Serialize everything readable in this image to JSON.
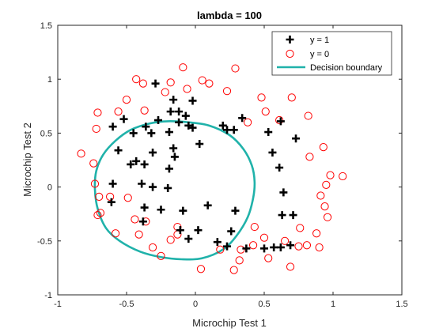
{
  "chart_data": {
    "type": "scatter",
    "title": "lambda = 100",
    "xlabel": "Microchip Test 1",
    "ylabel": "Microchip Test 2",
    "xlim": [
      -1,
      1.5
    ],
    "ylim": [
      -1,
      1.5
    ],
    "xticks": [
      -1,
      -0.5,
      0,
      0.5,
      1,
      1.5
    ],
    "yticks": [
      -1,
      -0.5,
      0,
      0.5,
      1,
      1.5
    ],
    "xtick_labels": [
      "-1",
      "-0.5",
      "0",
      "0.5",
      "1",
      "1.5"
    ],
    "ytick_labels": [
      "-1",
      "-0.5",
      "0",
      "0.5",
      "1",
      "1.5"
    ],
    "grid": false,
    "legend_position": "top-right",
    "series": [
      {
        "name": "y = 1",
        "marker": "plus",
        "color": "#000000",
        "points": [
          [
            -0.29,
            0.96
          ],
          [
            -0.16,
            0.81
          ],
          [
            -0.02,
            0.8
          ],
          [
            -0.18,
            0.7
          ],
          [
            -0.12,
            0.7
          ],
          [
            -0.27,
            0.62
          ],
          [
            -0.07,
            0.66
          ],
          [
            -0.12,
            0.6
          ],
          [
            -0.52,
            0.63
          ],
          [
            -0.36,
            0.56
          ],
          [
            -0.02,
            0.55
          ],
          [
            -0.05,
            0.57
          ],
          [
            -0.6,
            0.56
          ],
          [
            -0.45,
            0.5
          ],
          [
            -0.32,
            0.5
          ],
          [
            -0.19,
            0.51
          ],
          [
            0.2,
            0.57
          ],
          [
            0.23,
            0.53
          ],
          [
            0.28,
            0.53
          ],
          [
            0.34,
            0.64
          ],
          [
            0.53,
            0.51
          ],
          [
            0.62,
            0.61
          ],
          [
            0.73,
            0.45
          ],
          [
            0.03,
            0.4
          ],
          [
            -0.16,
            0.36
          ],
          [
            -0.56,
            0.34
          ],
          [
            -0.43,
            0.24
          ],
          [
            -0.31,
            0.32
          ],
          [
            -0.15,
            0.28
          ],
          [
            0.56,
            0.32
          ],
          [
            0.61,
            0.18
          ],
          [
            -0.47,
            0.21
          ],
          [
            -0.37,
            0.21
          ],
          [
            -0.19,
            0.17
          ],
          [
            -0.6,
            0.03
          ],
          [
            -0.39,
            0.03
          ],
          [
            -0.31,
            0.0
          ],
          [
            -0.2,
            -0.01
          ],
          [
            0.64,
            -0.05
          ],
          [
            -0.61,
            -0.14
          ],
          [
            -0.37,
            -0.19
          ],
          [
            -0.25,
            -0.21
          ],
          [
            -0.38,
            -0.32
          ],
          [
            -0.09,
            -0.22
          ],
          [
            0.09,
            -0.17
          ],
          [
            0.29,
            -0.22
          ],
          [
            0.63,
            -0.26
          ],
          [
            0.71,
            -0.26
          ],
          [
            0.02,
            -0.4
          ],
          [
            -0.05,
            -0.48
          ],
          [
            -0.11,
            -0.4
          ],
          [
            0.26,
            -0.41
          ],
          [
            0.16,
            -0.51
          ],
          [
            0.23,
            -0.55
          ],
          [
            0.57,
            -0.56
          ],
          [
            0.62,
            -0.56
          ],
          [
            0.69,
            -0.54
          ],
          [
            0.37,
            -0.57
          ],
          [
            0.5,
            -0.57
          ]
        ]
      },
      {
        "name": "y = 0",
        "marker": "circle",
        "color": "#ff0000",
        "points": [
          [
            -0.09,
            1.11
          ],
          [
            0.29,
            1.1
          ],
          [
            -0.43,
            1.0
          ],
          [
            -0.38,
            0.96
          ],
          [
            0.05,
            0.99
          ],
          [
            -0.18,
            0.97
          ],
          [
            -0.22,
            0.88
          ],
          [
            0.1,
            0.96
          ],
          [
            -0.06,
            0.91
          ],
          [
            0.23,
            0.89
          ],
          [
            0.48,
            0.83
          ],
          [
            0.7,
            0.83
          ],
          [
            0.51,
            0.7
          ],
          [
            0.82,
            0.66
          ],
          [
            -0.5,
            0.81
          ],
          [
            -0.56,
            0.7
          ],
          [
            -0.37,
            0.71
          ],
          [
            -0.71,
            0.69
          ],
          [
            0.61,
            0.62
          ],
          [
            0.38,
            0.6
          ],
          [
            -0.72,
            0.54
          ],
          [
            0.93,
            0.37
          ],
          [
            0.83,
            0.28
          ],
          [
            -0.83,
            0.31
          ],
          [
            -0.74,
            0.22
          ],
          [
            -0.73,
            0.03
          ],
          [
            0.98,
            0.11
          ],
          [
            1.07,
            0.1
          ],
          [
            0.95,
            0.02
          ],
          [
            -0.7,
            -0.09
          ],
          [
            0.91,
            -0.08
          ],
          [
            -0.49,
            -0.1
          ],
          [
            -0.62,
            -0.09
          ],
          [
            0.94,
            -0.18
          ],
          [
            -0.69,
            -0.24
          ],
          [
            -0.71,
            -0.26
          ],
          [
            -0.44,
            -0.3
          ],
          [
            -0.36,
            -0.32
          ],
          [
            0.96,
            -0.28
          ],
          [
            0.43,
            -0.37
          ],
          [
            -0.13,
            -0.37
          ],
          [
            0.76,
            -0.38
          ],
          [
            -0.13,
            -0.44
          ],
          [
            -0.18,
            -0.49
          ],
          [
            -0.31,
            -0.56
          ],
          [
            -0.41,
            -0.44
          ],
          [
            -0.58,
            -0.43
          ],
          [
            0.88,
            -0.43
          ],
          [
            0.81,
            -0.54
          ],
          [
            0.5,
            -0.47
          ],
          [
            0.65,
            -0.5
          ],
          [
            0.42,
            -0.54
          ],
          [
            0.75,
            -0.55
          ],
          [
            0.33,
            -0.58
          ],
          [
            0.18,
            -0.58
          ],
          [
            0.9,
            -0.56
          ],
          [
            -0.25,
            -0.64
          ],
          [
            0.32,
            -0.68
          ],
          [
            0.53,
            -0.66
          ],
          [
            0.69,
            -0.74
          ],
          [
            0.04,
            -0.76
          ],
          [
            0.28,
            -0.77
          ]
        ]
      },
      {
        "name": "Decision boundary",
        "type": "closed-curve",
        "color": "#20b2aa",
        "points": [
          [
            -0.2,
            0.61
          ],
          [
            -0.05,
            0.6
          ],
          [
            0.1,
            0.57
          ],
          [
            0.25,
            0.48
          ],
          [
            0.35,
            0.35
          ],
          [
            0.41,
            0.2
          ],
          [
            0.43,
            0.05
          ],
          [
            0.42,
            -0.1
          ],
          [
            0.38,
            -0.28
          ],
          [
            0.3,
            -0.45
          ],
          [
            0.2,
            -0.58
          ],
          [
            0.05,
            -0.66
          ],
          [
            -0.1,
            -0.67
          ],
          [
            -0.25,
            -0.65
          ],
          [
            -0.4,
            -0.6
          ],
          [
            -0.55,
            -0.5
          ],
          [
            -0.65,
            -0.38
          ],
          [
            -0.71,
            -0.2
          ],
          [
            -0.73,
            -0.02
          ],
          [
            -0.72,
            0.15
          ],
          [
            -0.67,
            0.3
          ],
          [
            -0.58,
            0.43
          ],
          [
            -0.47,
            0.53
          ],
          [
            -0.33,
            0.59
          ]
        ]
      }
    ]
  }
}
